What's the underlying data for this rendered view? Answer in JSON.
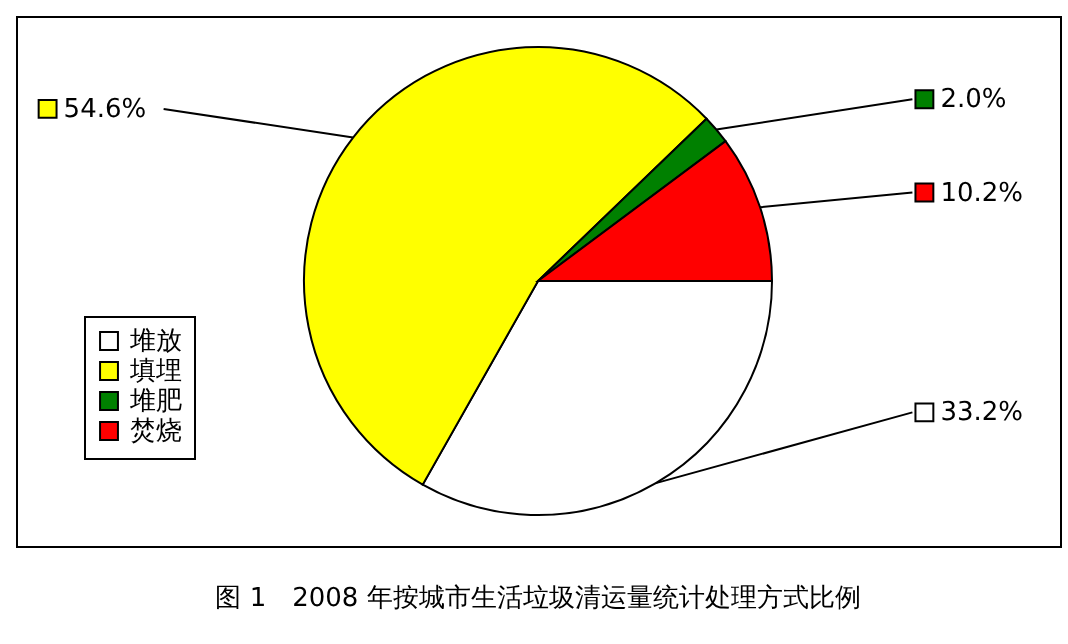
{
  "chart_data": {
    "type": "pie",
    "title": "图 1　2008 年按城市生活垃圾清运量统计处理方式比例",
    "categories": [
      "堆放",
      "填埋",
      "堆肥",
      "焚烧"
    ],
    "values": [
      33.2,
      54.6,
      2.0,
      10.2
    ],
    "colors": [
      "#ffffff",
      "#ffff00",
      "#008000",
      "#ff0000"
    ],
    "value_labels": [
      "33.2%",
      "54.6%",
      "2.0%",
      "10.2%"
    ],
    "legend": "left"
  }
}
